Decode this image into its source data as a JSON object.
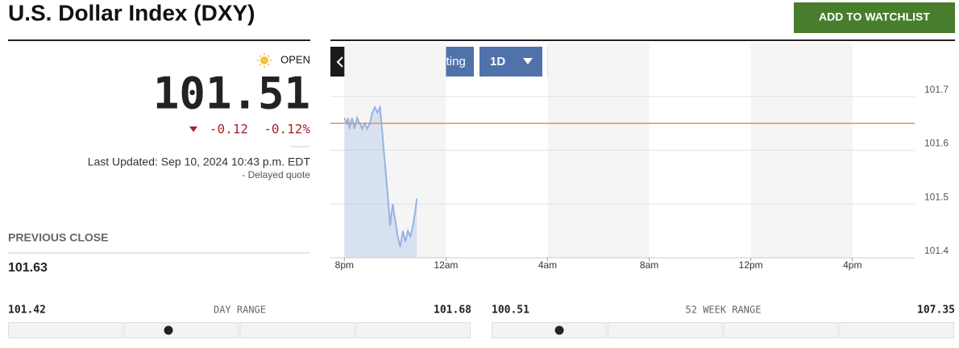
{
  "header": {
    "title": "U.S. Dollar Index (DXY)",
    "button": "ADD TO WATCHLIST"
  },
  "quote": {
    "status": "OPEN",
    "price": 101.51,
    "change": -0.12,
    "change_pct": "-0.12%",
    "last_updated": "Last Updated: Sep 10, 2024 10:43 p.m. EDT",
    "delayed": "- Delayed quote"
  },
  "previous_close": {
    "label": "PREVIOUS CLOSE",
    "value": 101.63
  },
  "toolbar": {
    "advanced": "Advanced Charting",
    "interval": "1D",
    "dollar": "$",
    "percent": "%"
  },
  "chart_data": {
    "type": "line",
    "x": [
      20.0,
      20.1,
      20.15,
      20.2,
      20.3,
      20.4,
      20.5,
      20.6,
      20.7,
      20.8,
      20.9,
      21.0,
      21.1,
      21.2,
      21.3,
      21.4,
      21.5,
      21.55,
      21.7,
      21.8,
      21.9,
      22.0,
      22.1,
      22.2,
      22.3,
      22.4,
      22.5,
      22.6,
      22.7,
      22.8,
      22.85
    ],
    "values": [
      101.66,
      101.65,
      101.66,
      101.64,
      101.66,
      101.64,
      101.66,
      101.65,
      101.64,
      101.65,
      101.64,
      101.65,
      101.67,
      101.68,
      101.67,
      101.68,
      101.63,
      101.6,
      101.52,
      101.46,
      101.5,
      101.47,
      101.44,
      101.42,
      101.45,
      101.43,
      101.45,
      101.44,
      101.46,
      101.49,
      101.51
    ],
    "color": "#94b3e3",
    "xlim": [
      19.45,
      42.45
    ],
    "xticks": [
      {
        "value": 20,
        "label": "8pm"
      },
      {
        "value": 24,
        "label": "12am"
      },
      {
        "value": 28,
        "label": "4am"
      },
      {
        "value": 32,
        "label": "8am"
      },
      {
        "value": 36,
        "label": "12pm"
      },
      {
        "value": 40,
        "label": "4pm"
      }
    ],
    "ylim": [
      101.4,
      101.8
    ],
    "yticks": [
      101.4,
      101.5,
      101.6,
      101.7
    ],
    "grid": true,
    "reference_line": 101.65,
    "reference_color": "#e0925c"
  },
  "ranges": [
    {
      "low": 101.42,
      "label": "DAY RANGE",
      "high": 101.68
    },
    {
      "low": 100.51,
      "label": "52 WEEK RANGE",
      "high": 107.35
    }
  ]
}
